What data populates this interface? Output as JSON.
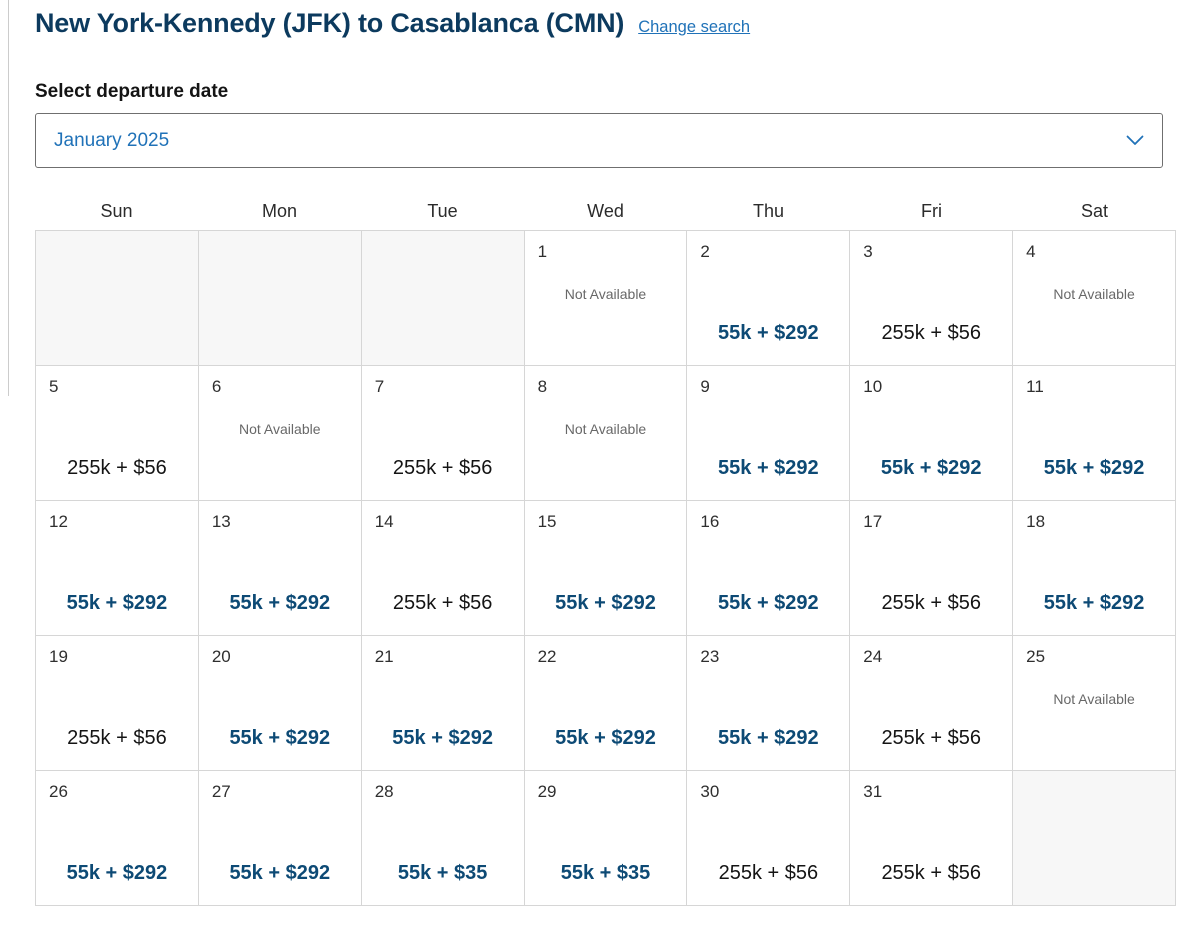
{
  "header": {
    "title": "New York-Kennedy (JFK) to Casablanca (CMN)",
    "change_search_label": "Change search"
  },
  "departure": {
    "label": "Select departure date",
    "selected_month": "January 2025",
    "chevron_icon": "chevron-down"
  },
  "colors": {
    "title_navy": "#0c3a5e",
    "link_blue": "#2072b8",
    "award_price_blue": "#0d4a75",
    "standard_price_black": "#141414",
    "unavailable_gray": "#686868",
    "grid_border": "#d6d6d6",
    "empty_cell_bg": "#f7f7f7"
  },
  "calendar": {
    "weekday_headers": [
      "Sun",
      "Mon",
      "Tue",
      "Wed",
      "Thu",
      "Fri",
      "Sat"
    ],
    "not_available_label": "Not Available",
    "weeks": [
      [
        {
          "day": "",
          "type": "empty"
        },
        {
          "day": "",
          "type": "empty"
        },
        {
          "day": "",
          "type": "empty"
        },
        {
          "day": "1",
          "type": "unavailable"
        },
        {
          "day": "2",
          "type": "award",
          "price": "55k + $292"
        },
        {
          "day": "3",
          "type": "standard",
          "price": "255k + $56"
        },
        {
          "day": "4",
          "type": "unavailable"
        }
      ],
      [
        {
          "day": "5",
          "type": "standard",
          "price": "255k + $56"
        },
        {
          "day": "6",
          "type": "unavailable"
        },
        {
          "day": "7",
          "type": "standard",
          "price": "255k + $56"
        },
        {
          "day": "8",
          "type": "unavailable"
        },
        {
          "day": "9",
          "type": "award",
          "price": "55k + $292"
        },
        {
          "day": "10",
          "type": "award",
          "price": "55k + $292"
        },
        {
          "day": "11",
          "type": "award",
          "price": "55k + $292"
        }
      ],
      [
        {
          "day": "12",
          "type": "award",
          "price": "55k + $292"
        },
        {
          "day": "13",
          "type": "award",
          "price": "55k + $292"
        },
        {
          "day": "14",
          "type": "standard",
          "price": "255k + $56"
        },
        {
          "day": "15",
          "type": "award",
          "price": "55k + $292"
        },
        {
          "day": "16",
          "type": "award",
          "price": "55k + $292"
        },
        {
          "day": "17",
          "type": "standard",
          "price": "255k + $56"
        },
        {
          "day": "18",
          "type": "award",
          "price": "55k + $292"
        }
      ],
      [
        {
          "day": "19",
          "type": "standard",
          "price": "255k + $56"
        },
        {
          "day": "20",
          "type": "award",
          "price": "55k + $292"
        },
        {
          "day": "21",
          "type": "award",
          "price": "55k + $292"
        },
        {
          "day": "22",
          "type": "award",
          "price": "55k + $292"
        },
        {
          "day": "23",
          "type": "award",
          "price": "55k + $292"
        },
        {
          "day": "24",
          "type": "standard",
          "price": "255k + $56"
        },
        {
          "day": "25",
          "type": "unavailable"
        }
      ],
      [
        {
          "day": "26",
          "type": "award",
          "price": "55k + $292"
        },
        {
          "day": "27",
          "type": "award",
          "price": "55k + $292"
        },
        {
          "day": "28",
          "type": "award",
          "price": "55k + $35"
        },
        {
          "day": "29",
          "type": "award",
          "price": "55k + $35"
        },
        {
          "day": "30",
          "type": "standard",
          "price": "255k + $56"
        },
        {
          "day": "31",
          "type": "standard",
          "price": "255k + $56"
        },
        {
          "day": "",
          "type": "empty"
        }
      ]
    ]
  }
}
